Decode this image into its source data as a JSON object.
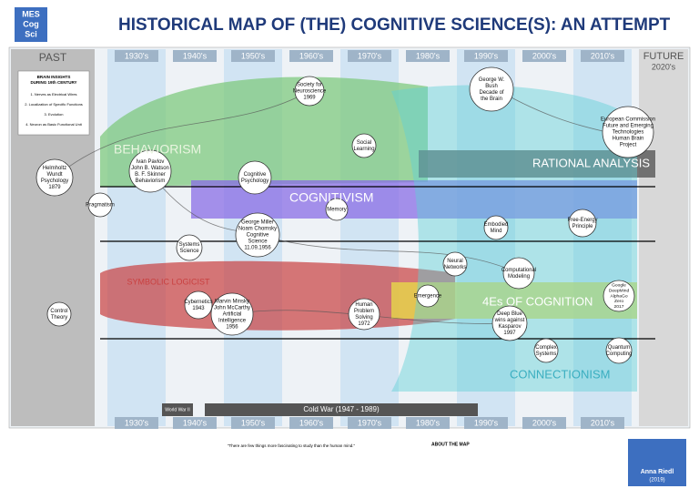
{
  "header": {
    "logo": [
      "MES",
      "Cog",
      "Sci"
    ],
    "title": "HISTORICAL MAP OF (THE) COGNITIVE SCIENCE(S): AN ATTEMPT"
  },
  "timeline": {
    "past": "PAST",
    "future": "FUTURE",
    "future_decade": "2020's",
    "decades": [
      "1930's",
      "1940's",
      "1950's",
      "1960's",
      "1970's",
      "1980's",
      "1990's",
      "2000's",
      "2010's"
    ]
  },
  "past_box": {
    "title": [
      "BRAIN INSIGHTS",
      "DURING 19th CENTURY"
    ],
    "items": [
      "1. Nerves as Electrical Wires",
      "2. Localization of Specific Functions",
      "3. Evolution",
      "4. Neuron as Basic Functional Unit"
    ]
  },
  "paradigms": [
    "BEHAVIORISM",
    "COGNITIVISM",
    "RATIONAL ANALYSIS",
    "SYMBOLIC LOGICIST",
    "4Es OF COGNITION",
    "CONNECTIONISM"
  ],
  "nodes": [
    {
      "lines": [
        "Helmholtz",
        "Wundt",
        "Psychology",
        "1879"
      ]
    },
    {
      "lines": [
        "Ivan Pavlov",
        "John B. Watson",
        "B. F. Skinner",
        "Behaviorism"
      ]
    },
    {
      "lines": [
        "Cognitive",
        "Psychology"
      ]
    },
    {
      "lines": [
        "George Miller",
        "Noam Chomsky",
        "Cognitive",
        "Science",
        "11.09.1956"
      ]
    },
    {
      "lines": [
        "Marvin Minsky",
        "John McCarthy",
        "Artificial",
        "Intelligence",
        "1956"
      ]
    },
    {
      "lines": [
        "Systems",
        "Science"
      ]
    },
    {
      "lines": [
        "Cybernetics",
        "1943"
      ]
    },
    {
      "lines": [
        "Control",
        "Theory"
      ]
    },
    {
      "lines": [
        "Society for",
        "Neuroscience",
        "1969"
      ]
    },
    {
      "lines": [
        "George W.",
        "Bush",
        "Decade of",
        "the Brain"
      ]
    },
    {
      "lines": [
        "European Commission",
        "Future and Emerging",
        "Technologies",
        "Human Brain",
        "Project"
      ]
    },
    {
      "lines": [
        "Computational",
        "Modeling"
      ]
    },
    {
      "lines": [
        "Deep Blue",
        "wins against",
        "Kasparov",
        "1997"
      ]
    },
    {
      "lines": [
        "Quantum",
        "Computing"
      ]
    },
    {
      "lines": [
        "Complex",
        "Systems"
      ]
    },
    {
      "lines": [
        "Human",
        "Problem",
        "Solving",
        "1972"
      ]
    },
    {
      "lines": [
        "Embodied",
        "Mind"
      ]
    },
    {
      "lines": [
        "Google",
        "DeepMind",
        "AlphaGo",
        "Zero",
        "2017"
      ]
    },
    {
      "lines": [
        "Social",
        "Learning"
      ]
    },
    {
      "lines": [
        "Memory"
      ]
    },
    {
      "lines": [
        "Pragmatism"
      ]
    },
    {
      "lines": [
        "Free-Energy",
        "Principle"
      ]
    },
    {
      "lines": [
        "Emergence"
      ]
    },
    {
      "lines": [
        "Neural",
        "Networks"
      ]
    }
  ],
  "events": [
    "World War II",
    "Cold War (1947 - 1989)"
  ],
  "footer": {
    "about": "ABOUT THE MAP",
    "quote": "\"There are few things more fascinating to study than the human mind.\"",
    "author": "Anna Riedl",
    "year": "(2019)"
  }
}
